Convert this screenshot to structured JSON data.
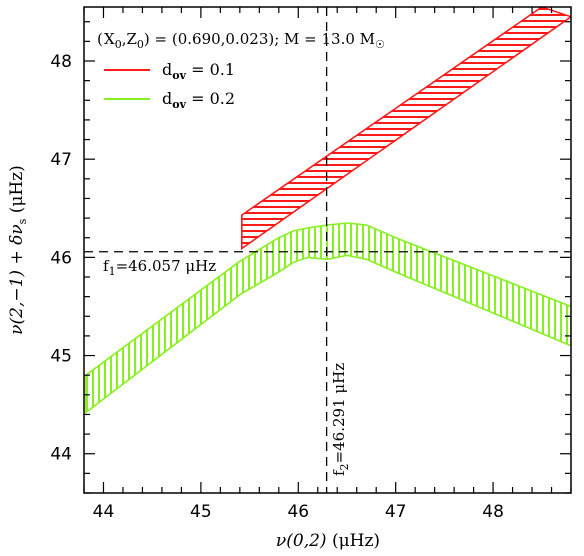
{
  "chart_data": {
    "type": "area",
    "xlabel_main": "ν(0,2)",
    "xlabel_unit": "(μHz)",
    "ylabel_main": "ν(2,−1)  +  δν",
    "ylabel_sub": "s",
    "ylabel_unit": "(μHz)",
    "xlim": [
      43.8,
      48.8
    ],
    "ylim": [
      43.6,
      48.55
    ],
    "xticks": [
      44,
      45,
      46,
      47,
      48
    ],
    "yticks": [
      44,
      45,
      46,
      47,
      48
    ],
    "xtick_labels": [
      "44",
      "45",
      "46",
      "47",
      "48"
    ],
    "ytick_labels": [
      "44",
      "45",
      "46",
      "47",
      "48"
    ],
    "grid": false,
    "legend_position": "top-left",
    "header": {
      "x_sym": "X",
      "x_sub": "0",
      "z_sym": "Z",
      "z_sub": "0",
      "values": "= (0.690,0.023);  M = 13.0 M",
      "m_sub": "☉"
    },
    "series": [
      {
        "name_main": "d",
        "name_sub": "ov",
        "name_value": "= 0.1",
        "color": "#ff1a1a",
        "hatch": "horizontal",
        "upper": [
          [
            45.42,
            46.43
          ],
          [
            48.5,
            48.55
          ]
        ],
        "lower": [
          [
            45.42,
            46.09
          ],
          [
            48.8,
            48.45
          ]
        ]
      },
      {
        "name_main": "d",
        "name_sub": "ov",
        "name_value": "= 0.2",
        "color": "#88f020",
        "hatch": "vertical",
        "upper": [
          [
            43.82,
            44.8
          ],
          [
            45.4,
            45.96
          ],
          [
            45.8,
            46.2
          ],
          [
            45.95,
            46.27
          ],
          [
            46.1,
            46.3
          ],
          [
            46.3,
            46.33
          ],
          [
            46.5,
            46.35
          ],
          [
            46.7,
            46.33
          ],
          [
            47.0,
            46.2
          ],
          [
            48.8,
            45.5
          ]
        ],
        "lower": [
          [
            43.82,
            44.42
          ],
          [
            45.4,
            45.62
          ],
          [
            45.8,
            45.85
          ],
          [
            45.95,
            45.95
          ],
          [
            46.1,
            46.0
          ],
          [
            46.3,
            45.98
          ],
          [
            46.5,
            46.02
          ],
          [
            46.7,
            45.98
          ],
          [
            47.0,
            45.85
          ],
          [
            48.8,
            45.1
          ]
        ]
      }
    ],
    "reference_lines": {
      "hline_y": 46.057,
      "vline_x": 46.291
    },
    "annotations": {
      "f1_sym": "f",
      "f1_sub": "1",
      "f1_text": "=46.057 μHz",
      "f2_sym": "f",
      "f2_sub": "2",
      "f2_text": "=46.291 μHz"
    }
  }
}
